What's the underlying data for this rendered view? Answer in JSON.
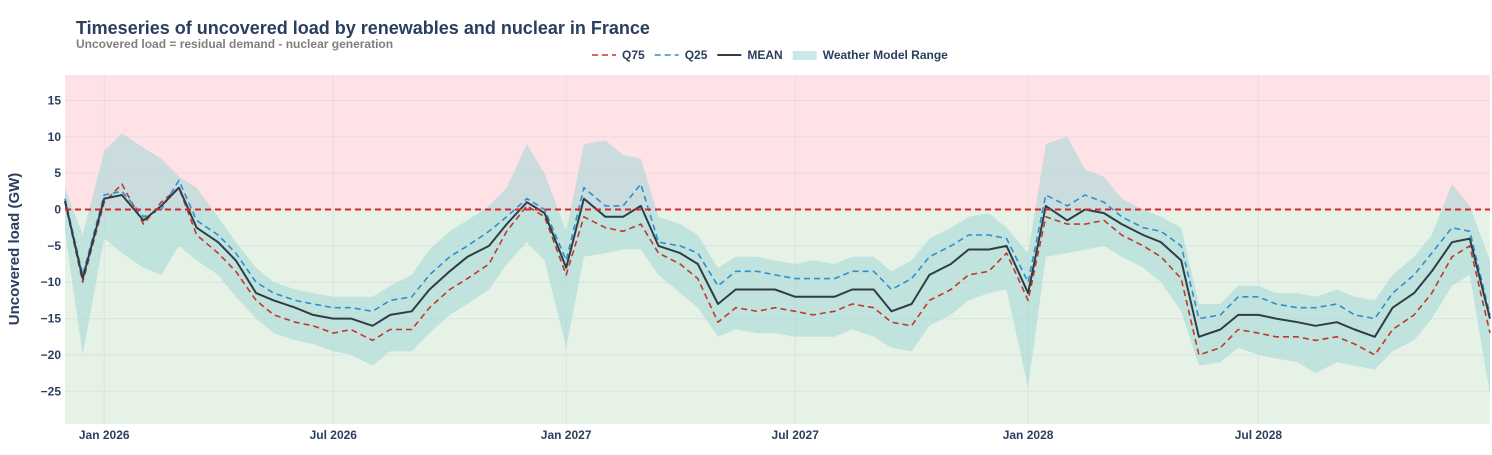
{
  "chart_data": {
    "type": "line",
    "title": "Timeseries of uncovered load by renewables and nuclear in France",
    "subtitle": "Uncovered load = residual demand - nuclear generation",
    "xlabel": "",
    "ylabel": "Uncovered load (GW)",
    "xlim": [
      "2025-12-01",
      "2028-12-31"
    ],
    "ylim": [
      -29.5,
      18.5
    ],
    "x_tick_labels": [
      "Jan 2026",
      "Jul 2026",
      "Jan 2027",
      "Jul 2027",
      "Jan 2028",
      "Jul 2028"
    ],
    "x_tick_dates": [
      "2026-01-01",
      "2026-07-01",
      "2027-01-01",
      "2027-07-01",
      "2028-01-01",
      "2028-07-01"
    ],
    "y_ticks": [
      -25,
      -20,
      -15,
      -10,
      -5,
      0,
      5,
      10,
      15
    ],
    "grid": true,
    "legend_position": "top-center",
    "background_regions": [
      {
        "name": "positive",
        "from": 0,
        "to": 18.5,
        "color": "#ffe2e6"
      },
      {
        "name": "negative",
        "from": -29.5,
        "to": 0,
        "color": "#e6f2e6"
      }
    ],
    "reference_line": {
      "y": 0,
      "color": "#d62728",
      "style": "dashed"
    },
    "x": [
      "2025-12-01",
      "2025-12-15",
      "2026-01-01",
      "2026-01-15",
      "2026-02-01",
      "2026-02-15",
      "2026-03-01",
      "2026-03-15",
      "2026-04-01",
      "2026-04-15",
      "2026-05-01",
      "2026-05-15",
      "2026-06-01",
      "2026-06-15",
      "2026-07-01",
      "2026-07-15",
      "2026-08-01",
      "2026-08-15",
      "2026-09-01",
      "2026-09-15",
      "2026-10-01",
      "2026-10-15",
      "2026-11-01",
      "2026-11-15",
      "2026-12-01",
      "2026-12-15",
      "2027-01-01",
      "2027-01-15",
      "2027-02-01",
      "2027-02-15",
      "2027-03-01",
      "2027-03-15",
      "2027-04-01",
      "2027-04-15",
      "2027-05-01",
      "2027-05-15",
      "2027-06-01",
      "2027-06-15",
      "2027-07-01",
      "2027-07-15",
      "2027-08-01",
      "2027-08-15",
      "2027-09-01",
      "2027-09-15",
      "2027-10-01",
      "2027-10-15",
      "2027-11-01",
      "2027-11-15",
      "2027-12-01",
      "2027-12-15",
      "2028-01-01",
      "2028-01-15",
      "2028-02-01",
      "2028-02-15",
      "2028-03-01",
      "2028-03-15",
      "2028-04-01",
      "2028-04-15",
      "2028-05-01",
      "2028-05-15",
      "2028-06-01",
      "2028-06-15",
      "2028-07-01",
      "2028-07-15",
      "2028-08-01",
      "2028-08-15",
      "2028-09-01",
      "2028-09-15",
      "2028-10-01",
      "2028-10-15",
      "2028-11-01",
      "2028-11-15",
      "2028-12-01",
      "2028-12-15",
      "2028-12-31"
    ],
    "series": [
      {
        "name": "Q75",
        "color": "#c0392b",
        "style": "dashed",
        "values": [
          1.0,
          -10.0,
          1.0,
          3.5,
          -2.0,
          1.0,
          3.0,
          -3.5,
          -6.0,
          -8.5,
          -12.5,
          -14.5,
          -15.5,
          -16.0,
          -17.0,
          -16.5,
          -18.0,
          -16.5,
          -16.5,
          -13.5,
          -11.0,
          -9.5,
          -7.5,
          -3.0,
          0.5,
          -1.0,
          -9.0,
          -1.0,
          -2.5,
          -3.0,
          -2.0,
          -6.0,
          -7.5,
          -9.5,
          -15.5,
          -13.5,
          -14.0,
          -13.5,
          -14.0,
          -14.5,
          -14.0,
          -13.0,
          -13.5,
          -15.5,
          -16.0,
          -12.5,
          -11.0,
          -9.0,
          -8.5,
          -6.0,
          -12.5,
          -1.0,
          -2.0,
          -2.0,
          -1.5,
          -3.5,
          -5.0,
          -6.5,
          -9.5,
          -20.0,
          -19.0,
          -16.5,
          -17.0,
          -17.5,
          -17.5,
          -18.0,
          -17.5,
          -18.5,
          -20.0,
          -16.5,
          -14.5,
          -11.5,
          -6.5,
          -5.0,
          -17.0
        ]
      },
      {
        "name": "Q25",
        "color": "#2e8fcf",
        "style": "dashed",
        "values": [
          1.5,
          -9.0,
          2.0,
          2.5,
          -1.0,
          0.0,
          4.0,
          -1.5,
          -3.5,
          -6.0,
          -10.0,
          -11.5,
          -12.5,
          -13.0,
          -13.5,
          -13.5,
          -14.0,
          -12.5,
          -12.0,
          -9.0,
          -6.5,
          -5.0,
          -3.0,
          -1.0,
          1.5,
          0.0,
          -7.0,
          3.0,
          0.5,
          0.5,
          3.5,
          -4.5,
          -5.0,
          -6.0,
          -10.5,
          -8.5,
          -8.5,
          -9.0,
          -9.5,
          -9.5,
          -9.5,
          -8.5,
          -8.5,
          -11.0,
          -9.5,
          -6.5,
          -5.0,
          -3.5,
          -3.5,
          -4.0,
          -10.0,
          2.0,
          0.5,
          2.0,
          1.0,
          -1.0,
          -2.5,
          -3.0,
          -5.0,
          -15.0,
          -14.5,
          -12.0,
          -12.0,
          -13.0,
          -13.5,
          -13.5,
          -13.0,
          -14.5,
          -15.0,
          -11.5,
          -9.0,
          -6.0,
          -2.5,
          -3.0,
          -14.5
        ]
      },
      {
        "name": "MEAN",
        "color": "#2f3e46",
        "style": "solid",
        "values": [
          1.2,
          -9.5,
          1.5,
          2.0,
          -1.5,
          0.5,
          3.0,
          -2.5,
          -4.5,
          -7.0,
          -11.5,
          -12.5,
          -13.5,
          -14.5,
          -15.0,
          -15.0,
          -16.0,
          -14.5,
          -14.0,
          -11.0,
          -8.5,
          -6.5,
          -5.0,
          -2.0,
          1.0,
          -0.5,
          -8.0,
          1.5,
          -1.0,
          -1.0,
          0.5,
          -5.0,
          -6.0,
          -7.5,
          -13.0,
          -11.0,
          -11.0,
          -11.0,
          -12.0,
          -12.0,
          -12.0,
          -11.0,
          -11.0,
          -14.0,
          -13.0,
          -9.0,
          -7.5,
          -5.5,
          -5.5,
          -5.0,
          -11.5,
          0.5,
          -1.5,
          0.0,
          -0.5,
          -2.0,
          -3.5,
          -4.5,
          -7.0,
          -17.5,
          -16.5,
          -14.5,
          -14.5,
          -15.0,
          -15.5,
          -16.0,
          -15.5,
          -16.5,
          -17.5,
          -13.5,
          -11.5,
          -8.5,
          -4.5,
          -4.0,
          -15.0
        ]
      },
      {
        "name": "Weather Model Range",
        "color": "#a8d8d8",
        "style": "band",
        "lower": [
          -3.0,
          -20.0,
          -4.0,
          -6.0,
          -8.0,
          -9.0,
          -5.0,
          -7.0,
          -9.0,
          -12.0,
          -15.0,
          -17.0,
          -18.0,
          -18.5,
          -19.5,
          -20.0,
          -21.5,
          -19.5,
          -19.5,
          -17.0,
          -14.5,
          -13.0,
          -11.0,
          -7.5,
          -4.5,
          -7.0,
          -19.0,
          -6.5,
          -6.0,
          -5.5,
          -5.5,
          -9.0,
          -11.5,
          -13.5,
          -17.5,
          -16.5,
          -17.0,
          -17.0,
          -17.5,
          -17.5,
          -17.5,
          -16.5,
          -17.5,
          -19.0,
          -19.5,
          -16.0,
          -14.5,
          -12.5,
          -11.5,
          -11.0,
          -24.5,
          -6.5,
          -6.0,
          -5.5,
          -5.0,
          -6.5,
          -8.0,
          -10.0,
          -14.0,
          -21.5,
          -21.0,
          -19.0,
          -20.0,
          -20.5,
          -21.0,
          -22.5,
          -21.0,
          -21.5,
          -22.0,
          -19.5,
          -18.0,
          -15.0,
          -10.5,
          -9.0,
          -25.5
        ],
        "upper": [
          3.0,
          -3.5,
          8.0,
          10.5,
          8.5,
          7.0,
          4.5,
          3.0,
          -1.0,
          -4.5,
          -8.0,
          -10.0,
          -11.0,
          -11.5,
          -12.0,
          -12.0,
          -12.0,
          -10.5,
          -9.0,
          -5.5,
          -3.0,
          -1.5,
          0.5,
          3.0,
          9.0,
          5.0,
          -3.0,
          9.0,
          9.5,
          7.5,
          7.0,
          -1.0,
          -2.0,
          -3.5,
          -8.0,
          -6.5,
          -6.5,
          -7.0,
          -7.5,
          -7.0,
          -7.5,
          -6.5,
          -6.5,
          -8.5,
          -7.0,
          -4.0,
          -2.5,
          -1.0,
          -0.5,
          -2.5,
          -6.0,
          9.0,
          10.0,
          5.5,
          4.5,
          1.5,
          0.0,
          -1.0,
          -2.5,
          -13.0,
          -13.0,
          -10.5,
          -10.5,
          -11.5,
          -11.5,
          -12.0,
          -11.0,
          -12.0,
          -12.5,
          -9.0,
          -6.5,
          -3.5,
          3.5,
          0.5,
          -7.0
        ]
      }
    ]
  }
}
